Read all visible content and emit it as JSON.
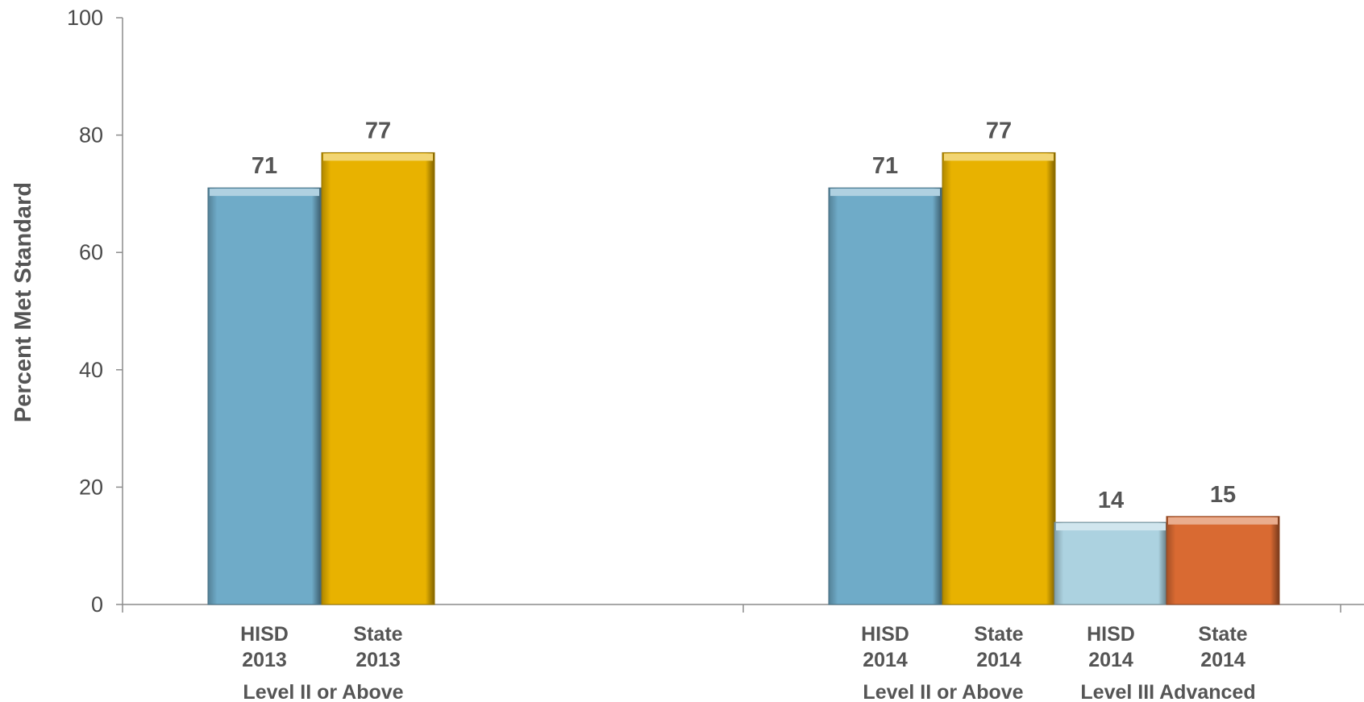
{
  "chart_data": {
    "type": "bar",
    "ylabel": "Percent Met Standard",
    "ylim": [
      0,
      100
    ],
    "yticks": [
      0,
      20,
      40,
      60,
      80,
      100
    ],
    "grid": false,
    "bars": [
      {
        "id": "hisd-2013",
        "label_lines": [
          "HISD",
          "2013"
        ],
        "value": 71,
        "color": "#6fabc8"
      },
      {
        "id": "state-2013",
        "label_lines": [
          "State",
          "2013"
        ],
        "value": 77,
        "color": "#e8b200"
      },
      {
        "id": "hisd-2014-l2",
        "label_lines": [
          "HISD",
          "2014"
        ],
        "value": 71,
        "color": "#6fabc8"
      },
      {
        "id": "state-2014-l2",
        "label_lines": [
          "State",
          "2014"
        ],
        "value": 77,
        "color": "#e8b200"
      },
      {
        "id": "hisd-2014-l3",
        "label_lines": [
          "HISD",
          "2014"
        ],
        "value": 14,
        "color": "#acd2e0"
      },
      {
        "id": "state-2014-l3",
        "label_lines": [
          "State",
          "2014"
        ],
        "value": 15,
        "color": "#d96a32"
      }
    ],
    "groups": [
      {
        "id": "group-2013-level2",
        "label": "Level II or Above"
      },
      {
        "id": "group-2014-level2",
        "label": "Level II or Above"
      },
      {
        "id": "group-2014-level3",
        "label": "Level III Advanced"
      }
    ]
  }
}
